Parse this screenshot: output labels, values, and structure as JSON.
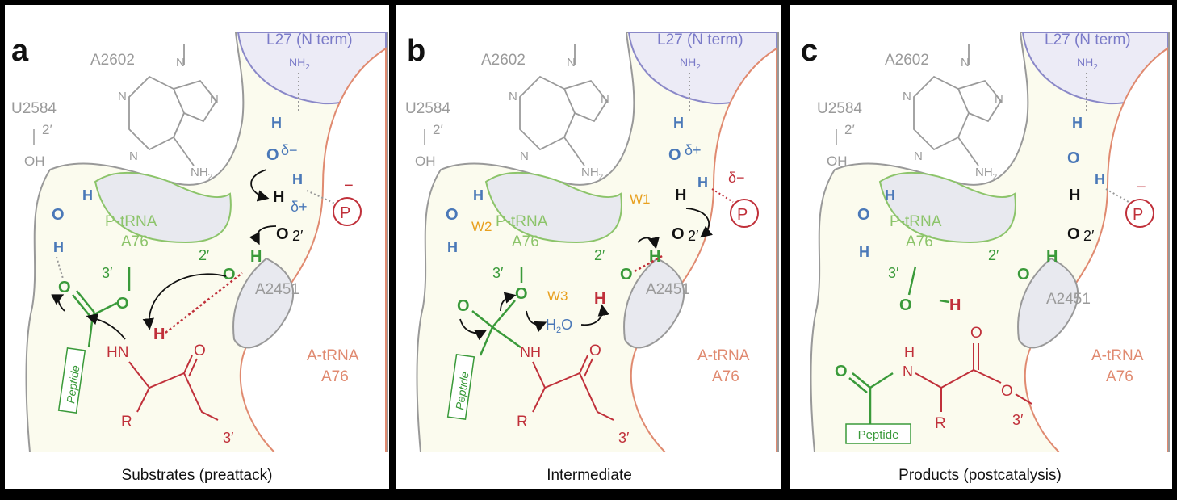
{
  "panels": [
    {
      "letter": "a",
      "caption": "Substrates (preattack)",
      "labels": {
        "l27": "L27 (N term)",
        "nh2_top": "NH",
        "nh2_top_sub": "2",
        "a2602": "A2602",
        "u2584": "U2584",
        "two_prime_u": "2′",
        "oh": "OH",
        "n1": "N",
        "n2": "N",
        "n3": "N",
        "n4": "N",
        "amine": "NH",
        "amine_sub": "2",
        "ptrna": "P-tRNA",
        "a76p": "A76",
        "three_prime_p": "3′",
        "two_prime_p": "2′",
        "a2451": "A2451",
        "atrna": "A-tRNA",
        "a76a": "A76",
        "peptide": "Peptide",
        "r": "R",
        "o1": "O",
        "o2": "O",
        "o3": "O",
        "hn": "HN",
        "h_red": "H",
        "h_blue1": "H",
        "o_blue": "O",
        "h_blue2": "H",
        "h_w": "H",
        "o_w": "O",
        "delta_minus": "δ−",
        "h_w2": "H",
        "delta_plus": "δ+",
        "h_black": "H",
        "o_black": "O",
        "two_prime_o": "2′",
        "o_green": "O",
        "h_green": "H",
        "three_prime_a": "3′",
        "p": "P",
        "minus": "−"
      }
    },
    {
      "letter": "b",
      "caption": "Intermediate",
      "labels": {
        "l27": "L27 (N term)",
        "nh2_top": "NH",
        "nh2_top_sub": "2",
        "a2602": "A2602",
        "u2584": "U2584",
        "two_prime_u": "2′",
        "oh": "OH",
        "n1": "N",
        "n2": "N",
        "n3": "N",
        "n4": "N",
        "amine": "NH",
        "amine_sub": "2",
        "ptrna": "P-tRNA",
        "a76p": "A76",
        "three_prime_p": "3′",
        "two_prime_p": "2′",
        "a2451": "A2451",
        "atrna": "A-tRNA",
        "a76a": "A76",
        "peptide": "Peptide",
        "r": "R",
        "o_minus": "O",
        "o2": "O",
        "o3": "O",
        "nh": "NH",
        "h_red": "H",
        "w1": "W1",
        "w2": "W2",
        "w3": "W3",
        "h2o": "H",
        "h2o_sub": "2",
        "h2o_o": "O",
        "h_w": "H",
        "o_w": "O",
        "delta_plus": "δ+",
        "h_w2": "H",
        "delta_minus": "δ−",
        "h_black": "H",
        "o_black": "O",
        "two_prime_o": "2′",
        "o_green": "O",
        "h_green": "H",
        "h_blue1": "H",
        "o_blue": "O",
        "h_blue2": "H",
        "three_prime_a": "3′",
        "p": "P",
        "o_carb": "O"
      }
    },
    {
      "letter": "c",
      "caption": "Products (postcatalysis)",
      "labels": {
        "l27": "L27 (N term)",
        "nh2_top": "NH",
        "nh2_top_sub": "2",
        "a2602": "A2602",
        "u2584": "U2584",
        "two_prime_u": "2′",
        "oh": "OH",
        "n1": "N",
        "n2": "N",
        "n3": "N",
        "n4": "N",
        "amine": "NH",
        "amine_sub": "2",
        "ptrna": "P-tRNA",
        "a76p": "A76",
        "three_prime_p": "3′",
        "two_prime_p": "2′",
        "a2451": "A2451",
        "atrna": "A-tRNA",
        "a76a": "A76",
        "peptide": "Peptide",
        "r": "R",
        "o_pep": "O",
        "h_n": "H",
        "n": "N",
        "o_top": "O",
        "o_ester": "O",
        "three_prime_a": "3′",
        "o_3p": "O",
        "h_3p": "H",
        "o_green": "O",
        "h_green": "H",
        "h_w": "H",
        "o_w": "O",
        "h_w2": "H",
        "h_black": "H",
        "o_black": "O",
        "two_prime_o": "2′",
        "h_blue1": "H",
        "o_blue": "O",
        "h_blue2": "H",
        "p": "P",
        "minus": "−"
      }
    }
  ],
  "colors": {
    "background": "#fbfbee",
    "grey": "#9a9a9a",
    "green": "#3a9a3a",
    "light_green": "#8cc46a",
    "red": "#c0303a",
    "salmon": "#e08a70",
    "blue": "#4a78b8",
    "purple": "#7a7ac8",
    "orange": "#e8a020",
    "black": "#111111"
  }
}
